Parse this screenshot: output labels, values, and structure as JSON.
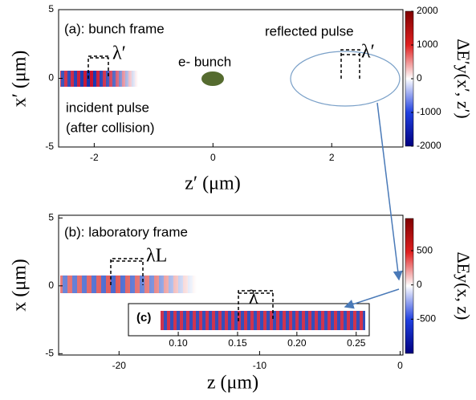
{
  "chart_data": [
    {
      "type": "heatmap",
      "title": "(a): bunch frame",
      "xlabel": "z′ (μm)",
      "ylabel": "x′ (μm)",
      "xlim": [
        -2.6,
        3.2
      ],
      "xticks": [
        -2,
        0,
        2
      ],
      "ylim": [
        -5,
        5
      ],
      "yticks": [
        -5,
        0,
        5
      ],
      "colorbar": {
        "label": "ΔE′y(x′, z′)",
        "lim": [
          -2000,
          2000
        ],
        "ticks": [
          2000,
          1000,
          0,
          -1000,
          -2000
        ]
      },
      "annotations": [
        "reflected pulse",
        "e- bunch",
        "incident pulse",
        "(after collision)",
        "λ′",
        "λ′"
      ]
    },
    {
      "type": "heatmap",
      "title": "(b): laboratory frame",
      "xlabel": "z (μm)",
      "ylabel": "x (μm)",
      "xlim": [
        -24.3,
        0.2
      ],
      "xticks": [
        -20,
        -10,
        0
      ],
      "ylim": [
        -5.1,
        5.2
      ],
      "yticks": [
        -5,
        0,
        5
      ],
      "colorbar": {
        "label": "ΔEy(x, z)",
        "lim": [
          -1000,
          970
        ],
        "ticks": [
          500,
          0,
          -500
        ]
      },
      "annotations": [
        "λL",
        "λ"
      ]
    },
    {
      "type": "heatmap",
      "title": "(c)",
      "xlim": [
        0.058,
        0.261
      ],
      "xticks": [
        {
          "value": 0.1,
          "label": "0.10"
        },
        {
          "value": 0.15,
          "label": "0.15"
        },
        {
          "value": 0.2,
          "label": "0.20"
        },
        {
          "value": 0.25,
          "label": "0.25"
        }
      ]
    }
  ]
}
